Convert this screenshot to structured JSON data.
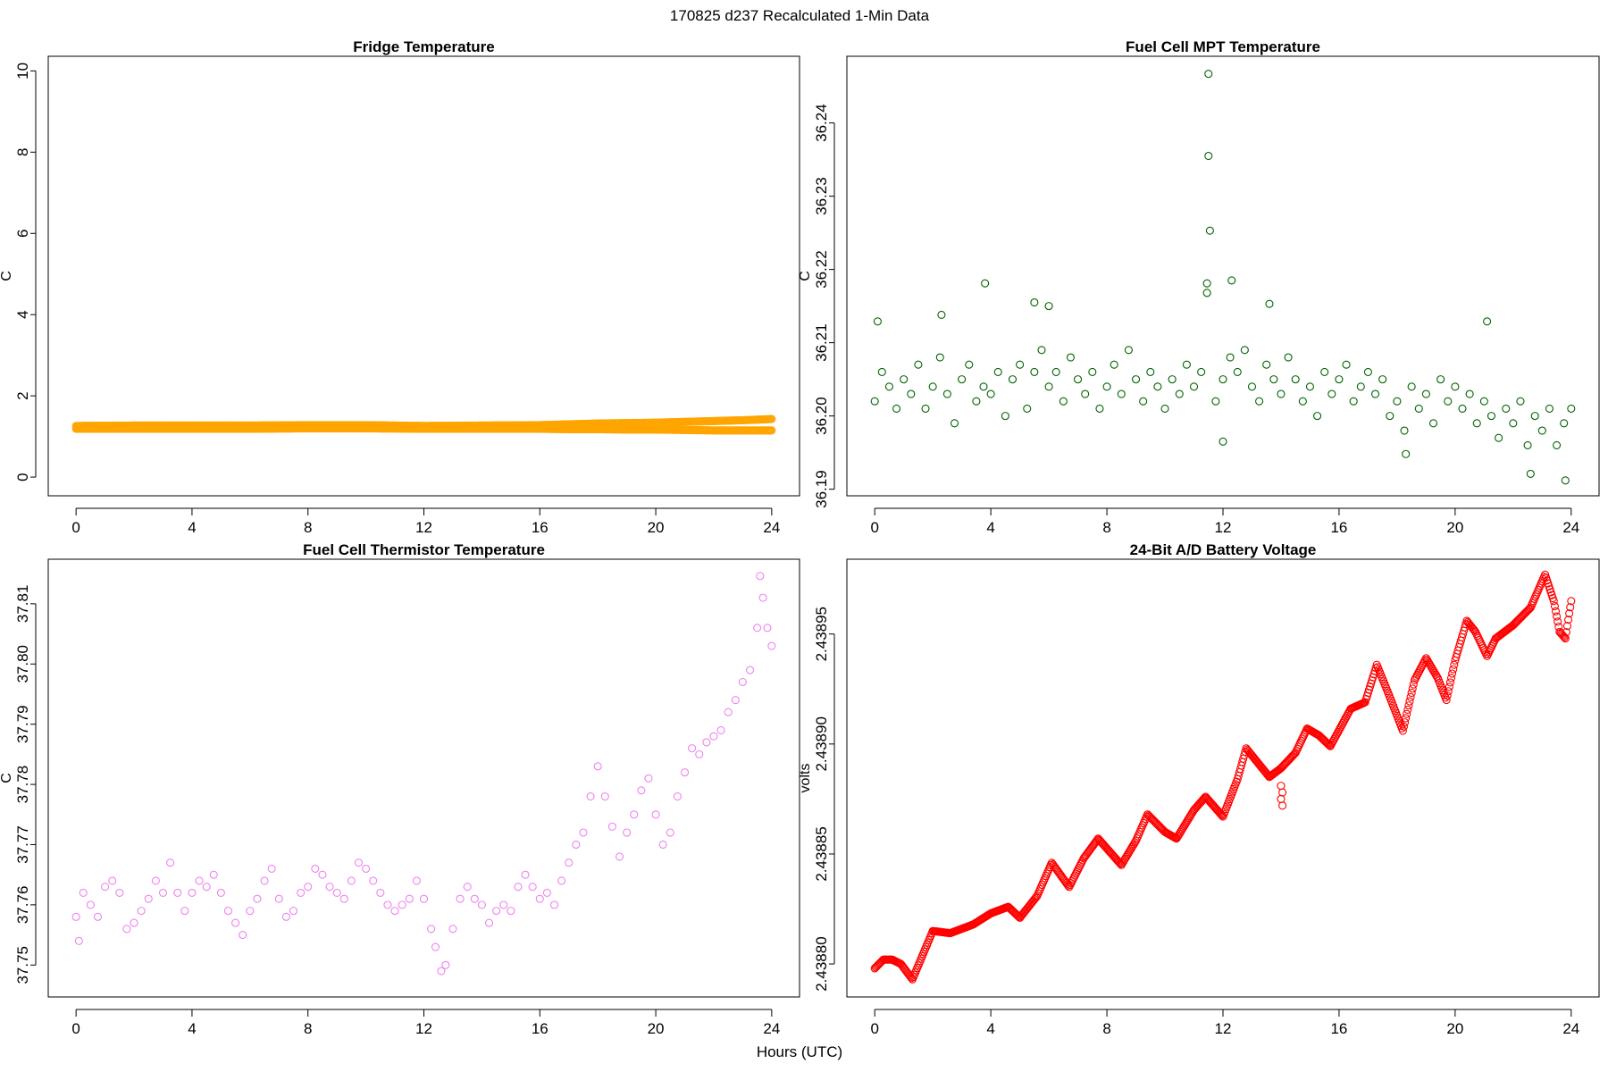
{
  "figure": {
    "title": "170825   d237   Recalculated 1-Min Data",
    "xlabel": "Hours (UTC)"
  },
  "chart_data": [
    {
      "type": "scatter",
      "title": "Fridge Temperature",
      "xlabel": "",
      "ylabel": "C",
      "color": "#FFA500",
      "xlim": [
        -0.96,
        24.96
      ],
      "ylim": [
        -0.46,
        10.36
      ],
      "xticks": [
        "0",
        "4",
        "8",
        "12",
        "16",
        "20",
        "24"
      ],
      "yticks": [
        "0",
        "2",
        "4",
        "6",
        "8",
        "10"
      ],
      "series": [
        {
          "x": [
            0,
            2,
            4,
            6,
            8,
            10,
            12,
            14,
            16,
            17,
            18,
            19,
            20,
            21,
            22,
            23,
            24
          ],
          "y": [
            1.19,
            1.19,
            1.19,
            1.19,
            1.2,
            1.2,
            1.19,
            1.19,
            1.19,
            1.18,
            1.18,
            1.17,
            1.17,
            1.16,
            1.15,
            1.15,
            1.15
          ]
        },
        {
          "x": [
            0,
            2,
            4,
            6,
            8,
            10,
            12,
            14,
            16,
            17,
            18,
            19,
            20,
            21,
            22,
            23,
            24
          ],
          "y": [
            1.26,
            1.27,
            1.27,
            1.27,
            1.28,
            1.28,
            1.26,
            1.27,
            1.28,
            1.3,
            1.32,
            1.33,
            1.34,
            1.36,
            1.38,
            1.4,
            1.43
          ]
        }
      ]
    },
    {
      "type": "scatter",
      "title": "Fuel Cell MPT Temperature",
      "xlabel": "",
      "ylabel": "C",
      "color": "#006400",
      "xlim": [
        -0.96,
        24.96
      ],
      "ylim": [
        36.1891,
        36.2491
      ],
      "xticks": [
        "0",
        "4",
        "8",
        "12",
        "16",
        "20",
        "24"
      ],
      "yticks": [
        "36.19",
        "36.20",
        "36.21",
        "36.22",
        "36.23",
        "36.24"
      ],
      "points": [
        [
          0,
          36.202
        ],
        [
          0.25,
          36.206
        ],
        [
          0.5,
          36.204
        ],
        [
          0.75,
          36.201
        ],
        [
          1,
          36.205
        ],
        [
          1.25,
          36.203
        ],
        [
          1.5,
          36.207
        ],
        [
          1.75,
          36.201
        ],
        [
          2,
          36.204
        ],
        [
          2.25,
          36.208
        ],
        [
          2.5,
          36.203
        ],
        [
          2.75,
          36.199
        ],
        [
          3,
          36.205
        ],
        [
          3.25,
          36.207
        ],
        [
          3.5,
          36.202
        ],
        [
          3.75,
          36.204
        ],
        [
          4,
          36.203
        ],
        [
          4.25,
          36.206
        ],
        [
          4.5,
          36.2
        ],
        [
          4.75,
          36.205
        ],
        [
          5,
          36.207
        ],
        [
          5.25,
          36.201
        ],
        [
          5.5,
          36.206
        ],
        [
          5.75,
          36.209
        ],
        [
          6,
          36.204
        ],
        [
          6.25,
          36.206
        ],
        [
          6.5,
          36.202
        ],
        [
          6.75,
          36.208
        ],
        [
          7,
          36.205
        ],
        [
          7.25,
          36.203
        ],
        [
          7.5,
          36.206
        ],
        [
          7.75,
          36.201
        ],
        [
          8,
          36.204
        ],
        [
          8.25,
          36.207
        ],
        [
          8.5,
          36.203
        ],
        [
          8.75,
          36.209
        ],
        [
          9,
          36.205
        ],
        [
          9.25,
          36.202
        ],
        [
          9.5,
          36.206
        ],
        [
          9.75,
          36.204
        ],
        [
          10,
          36.201
        ],
        [
          10.25,
          36.205
        ],
        [
          10.5,
          36.203
        ],
        [
          10.75,
          36.207
        ],
        [
          11,
          36.204
        ],
        [
          11.25,
          36.206
        ],
        [
          11.75,
          36.202
        ],
        [
          12,
          36.205
        ],
        [
          12.25,
          36.208
        ],
        [
          12.5,
          36.206
        ],
        [
          12.75,
          36.209
        ],
        [
          13,
          36.204
        ],
        [
          13.25,
          36.202
        ],
        [
          13.5,
          36.207
        ],
        [
          13.75,
          36.205
        ],
        [
          14,
          36.203
        ],
        [
          14.25,
          36.208
        ],
        [
          14.5,
          36.205
        ],
        [
          14.75,
          36.202
        ],
        [
          15,
          36.204
        ],
        [
          15.25,
          36.2
        ],
        [
          15.5,
          36.206
        ],
        [
          15.75,
          36.203
        ],
        [
          16,
          36.205
        ],
        [
          16.25,
          36.207
        ],
        [
          16.5,
          36.202
        ],
        [
          16.75,
          36.204
        ],
        [
          17,
          36.206
        ],
        [
          17.25,
          36.203
        ],
        [
          17.5,
          36.205
        ],
        [
          17.75,
          36.2
        ],
        [
          18,
          36.202
        ],
        [
          18.25,
          36.198
        ],
        [
          18.5,
          36.204
        ],
        [
          18.75,
          36.201
        ],
        [
          19,
          36.203
        ],
        [
          19.25,
          36.199
        ],
        [
          19.5,
          36.205
        ],
        [
          19.75,
          36.202
        ],
        [
          20,
          36.204
        ],
        [
          20.25,
          36.201
        ],
        [
          20.5,
          36.203
        ],
        [
          20.75,
          36.199
        ],
        [
          21,
          36.202
        ],
        [
          21.25,
          36.2
        ],
        [
          21.5,
          36.197
        ],
        [
          21.75,
          36.201
        ],
        [
          22,
          36.199
        ],
        [
          22.25,
          36.202
        ],
        [
          22.5,
          36.196
        ],
        [
          22.75,
          36.2
        ],
        [
          23,
          36.198
        ],
        [
          23.25,
          36.201
        ],
        [
          23.5,
          36.196
        ],
        [
          23.75,
          36.199
        ],
        [
          24,
          36.201
        ],
        [
          11.5,
          36.2467
        ],
        [
          11.5,
          36.2355
        ],
        [
          11.55,
          36.2253
        ],
        [
          11.45,
          36.2181
        ],
        [
          11.45,
          36.2168
        ],
        [
          12.3,
          36.2185
        ],
        [
          3.8,
          36.2181
        ],
        [
          5.5,
          36.2155
        ],
        [
          6.0,
          36.215
        ],
        [
          13.6,
          36.2153
        ],
        [
          2.3,
          36.2138
        ],
        [
          0.1,
          36.2129
        ],
        [
          21.1,
          36.2129
        ],
        [
          12.0,
          36.1965
        ],
        [
          18.3,
          36.1948
        ],
        [
          22.6,
          36.1921
        ],
        [
          23.8,
          36.1912
        ]
      ]
    },
    {
      "type": "scatter",
      "title": "Fuel Cell Thermistor Temperature",
      "xlabel": "",
      "ylabel": "C",
      "color": "#EE82EE",
      "xlim": [
        -0.96,
        24.96
      ],
      "ylim": [
        37.7447,
        37.8174
      ],
      "xticks": [
        "0",
        "4",
        "8",
        "12",
        "16",
        "20",
        "24"
      ],
      "yticks": [
        "37.75",
        "37.76",
        "37.77",
        "37.78",
        "37.79",
        "37.80",
        "37.81"
      ],
      "points": [
        [
          0,
          37.758
        ],
        [
          0.1,
          37.754
        ],
        [
          0.25,
          37.762
        ],
        [
          0.5,
          37.76
        ],
        [
          0.75,
          37.758
        ],
        [
          1,
          37.763
        ],
        [
          1.25,
          37.764
        ],
        [
          1.5,
          37.762
        ],
        [
          1.75,
          37.756
        ],
        [
          2,
          37.757
        ],
        [
          2.25,
          37.759
        ],
        [
          2.5,
          37.761
        ],
        [
          2.75,
          37.764
        ],
        [
          3,
          37.762
        ],
        [
          3.25,
          37.767
        ],
        [
          3.5,
          37.762
        ],
        [
          3.75,
          37.759
        ],
        [
          4,
          37.762
        ],
        [
          4.25,
          37.764
        ],
        [
          4.5,
          37.763
        ],
        [
          4.75,
          37.765
        ],
        [
          5,
          37.762
        ],
        [
          5.25,
          37.759
        ],
        [
          5.5,
          37.757
        ],
        [
          5.75,
          37.755
        ],
        [
          6,
          37.759
        ],
        [
          6.25,
          37.761
        ],
        [
          6.5,
          37.764
        ],
        [
          6.75,
          37.766
        ],
        [
          7,
          37.761
        ],
        [
          7.25,
          37.758
        ],
        [
          7.5,
          37.759
        ],
        [
          7.75,
          37.762
        ],
        [
          8,
          37.763
        ],
        [
          8.25,
          37.766
        ],
        [
          8.5,
          37.765
        ],
        [
          8.75,
          37.763
        ],
        [
          9,
          37.762
        ],
        [
          9.25,
          37.761
        ],
        [
          9.5,
          37.764
        ],
        [
          9.75,
          37.767
        ],
        [
          10,
          37.766
        ],
        [
          10.25,
          37.764
        ],
        [
          10.5,
          37.762
        ],
        [
          10.75,
          37.76
        ],
        [
          11,
          37.759
        ],
        [
          11.25,
          37.76
        ],
        [
          11.5,
          37.761
        ],
        [
          11.75,
          37.764
        ],
        [
          12,
          37.761
        ],
        [
          12.25,
          37.756
        ],
        [
          12.4,
          37.753
        ],
        [
          12.6,
          37.749
        ],
        [
          12.75,
          37.75
        ],
        [
          13,
          37.756
        ],
        [
          13.25,
          37.761
        ],
        [
          13.5,
          37.763
        ],
        [
          13.75,
          37.761
        ],
        [
          14,
          37.76
        ],
        [
          14.25,
          37.757
        ],
        [
          14.5,
          37.759
        ],
        [
          14.75,
          37.76
        ],
        [
          15,
          37.759
        ],
        [
          15.25,
          37.763
        ],
        [
          15.5,
          37.765
        ],
        [
          15.75,
          37.763
        ],
        [
          16,
          37.761
        ],
        [
          16.25,
          37.762
        ],
        [
          16.5,
          37.76
        ],
        [
          16.75,
          37.764
        ],
        [
          17,
          37.767
        ],
        [
          17.25,
          37.77
        ],
        [
          17.5,
          37.772
        ],
        [
          17.75,
          37.778
        ],
        [
          18,
          37.783
        ],
        [
          18.25,
          37.778
        ],
        [
          18.5,
          37.773
        ],
        [
          18.75,
          37.768
        ],
        [
          19,
          37.772
        ],
        [
          19.25,
          37.775
        ],
        [
          19.5,
          37.779
        ],
        [
          19.75,
          37.781
        ],
        [
          20,
          37.775
        ],
        [
          20.25,
          37.77
        ],
        [
          20.5,
          37.772
        ],
        [
          20.75,
          37.778
        ],
        [
          21,
          37.782
        ],
        [
          21.25,
          37.786
        ],
        [
          21.5,
          37.785
        ],
        [
          21.75,
          37.787
        ],
        [
          22,
          37.788
        ],
        [
          22.25,
          37.789
        ],
        [
          22.5,
          37.792
        ],
        [
          22.75,
          37.794
        ],
        [
          23,
          37.797
        ],
        [
          23.25,
          37.799
        ],
        [
          23.5,
          37.806
        ],
        [
          23.6,
          37.8146
        ],
        [
          23.7,
          37.811
        ],
        [
          23.85,
          37.806
        ],
        [
          24,
          37.803
        ]
      ]
    },
    {
      "type": "scatter",
      "title": "24-Bit A/D Battery Voltage",
      "xlabel": "",
      "ylabel": "volts",
      "color": "#FF0000",
      "xlim": [
        -0.96,
        24.96
      ],
      "ylim": [
        2.438785,
        2.438984
      ],
      "xticks": [
        "0",
        "4",
        "8",
        "12",
        "16",
        "20",
        "24"
      ],
      "yticks": [
        "2.43880",
        "2.43885",
        "2.43890",
        "2.43895"
      ],
      "series": [
        {
          "x": [
            0,
            0.3,
            0.6,
            0.9,
            1.3,
            2.0,
            2.6,
            3.4,
            4.0,
            4.6,
            5.0,
            5.6,
            6.1,
            6.7,
            7.2,
            7.7,
            8.5,
            9.0,
            9.4,
            10.0,
            10.4,
            11.0,
            11.4,
            12.0,
            12.5,
            12.8,
            13.6,
            14.0,
            14.5,
            14.9,
            15.3,
            15.7,
            16.4,
            16.9,
            17.3,
            17.7,
            18.2,
            18.6,
            19.0,
            19.4,
            19.7,
            20.0,
            20.4,
            20.7,
            21.1,
            21.4,
            22.0,
            22.6,
            23.1,
            23.4,
            23.6,
            23.8,
            24.0
          ],
          "y": [
            2.438798,
            2.438802,
            2.438802,
            2.4388,
            2.438793,
            2.438815,
            2.438814,
            2.438818,
            2.438823,
            2.438826,
            2.438821,
            2.438831,
            2.438846,
            2.438835,
            2.438848,
            2.438857,
            2.438845,
            2.438856,
            2.438868,
            2.43886,
            2.438857,
            2.43887,
            2.438876,
            2.438867,
            2.438884,
            2.438898,
            2.438885,
            2.438889,
            2.438896,
            2.438907,
            2.438904,
            2.438899,
            2.438916,
            2.438919,
            2.438936,
            2.438923,
            2.438906,
            2.438929,
            2.438939,
            2.43893,
            2.43892,
            2.438938,
            2.438956,
            2.438951,
            2.43894,
            2.438948,
            2.438954,
            2.438962,
            2.438977,
            2.438965,
            2.438951,
            2.438948,
            2.438965
          ]
        }
      ],
      "points": [
        [
          14.0,
          2.438881
        ],
        [
          14.05,
          2.438878
        ],
        [
          14.0,
          2.438875
        ],
        [
          14.05,
          2.438872
        ]
      ]
    }
  ]
}
